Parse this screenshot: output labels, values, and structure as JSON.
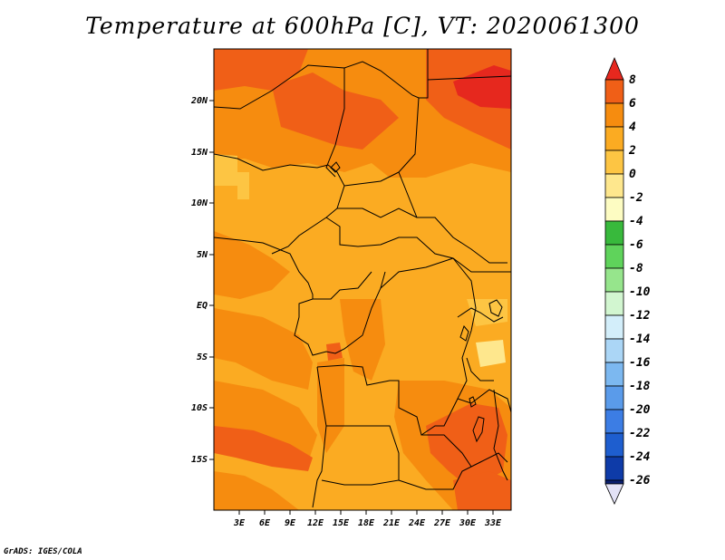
{
  "title": "Temperature at 600hPa [C], VT: 2020061300",
  "credit": "GrADS: IGES/COLA",
  "map": {
    "lon_labels": [
      "3E",
      "6E",
      "9E",
      "12E",
      "15E",
      "18E",
      "21E",
      "24E",
      "27E",
      "30E",
      "33E"
    ],
    "lat_labels": [
      "20N",
      "15N",
      "10N",
      "5N",
      "EQ",
      "5S",
      "10S",
      "15S"
    ]
  },
  "colorbar": {
    "labels": [
      "8",
      "6",
      "4",
      "2",
      "0",
      "-2",
      "-4",
      "-6",
      "-8",
      "-10",
      "-12",
      "-14",
      "-16",
      "-18",
      "-20",
      "-22",
      "-24",
      "-26"
    ],
    "colors": [
      "#e6281e",
      "#f05f17",
      "#f68c0f",
      "#fbab22",
      "#fdc543",
      "#fee78d",
      "#fdfcc2",
      "#38b93c",
      "#5fd35b",
      "#96e58c",
      "#d2f6d0",
      "#d3eefa",
      "#abd6f6",
      "#7cb8f0",
      "#5a9bea",
      "#3c7de4",
      "#1e5ecf",
      "#0e3ba8",
      "#0a1f6f",
      "#e3e2f6"
    ]
  }
}
